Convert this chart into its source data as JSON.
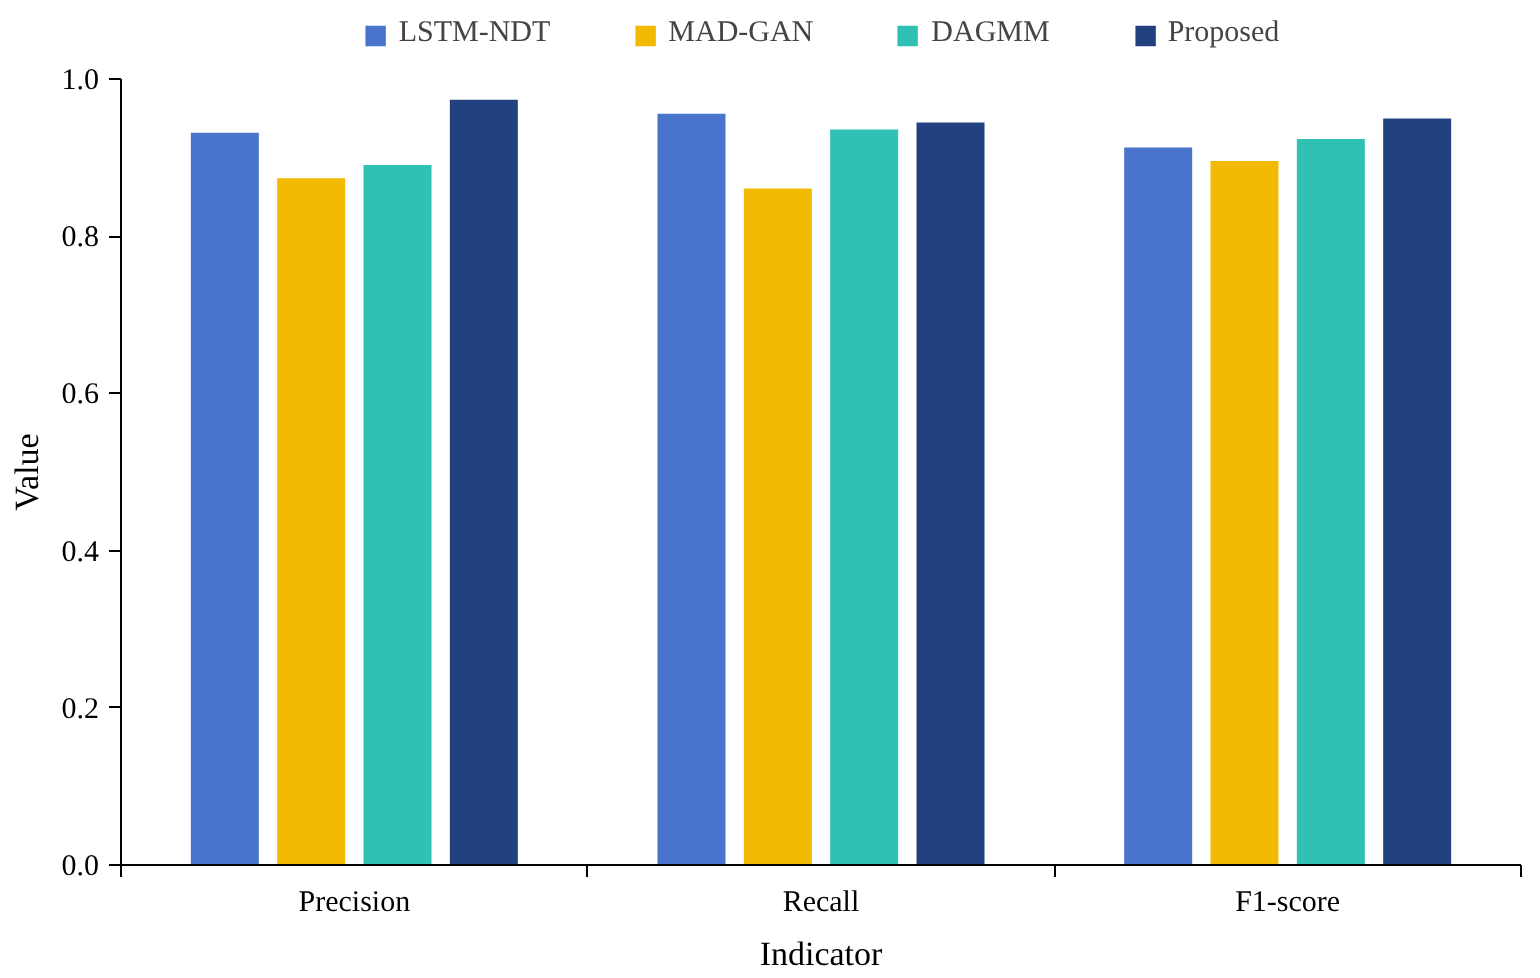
{
  "chart_data": {
    "type": "bar",
    "xlabel": "Indicator",
    "ylabel": "Value",
    "categories": [
      "Precision",
      "Recall",
      "F1-score"
    ],
    "series": [
      {
        "name": "LSTM-NDT",
        "color": "#4874cb",
        "values": [
          0.933,
          0.957,
          0.914
        ]
      },
      {
        "name": "MAD-GAN",
        "color": "#f2ba02",
        "values": [
          0.875,
          0.862,
          0.897
        ]
      },
      {
        "name": "DAGMM",
        "color": "#30c0b4",
        "values": [
          0.892,
          0.937,
          0.925
        ]
      },
      {
        "name": "Proposed",
        "color": "#22427f",
        "values": [
          0.975,
          0.946,
          0.951
        ]
      }
    ],
    "ylim": [
      0,
      1.0
    ],
    "yticks": [
      {
        "value": 0,
        "label": "0.0"
      },
      {
        "value": 0.2,
        "label": "0.2"
      },
      {
        "value": 0.4,
        "label": "0.4"
      },
      {
        "value": 0.6,
        "label": "0.6"
      },
      {
        "value": 0.8,
        "label": "0.8"
      },
      {
        "value": 1.0,
        "label": "1.0"
      }
    ],
    "grid": false,
    "legend": "top"
  }
}
